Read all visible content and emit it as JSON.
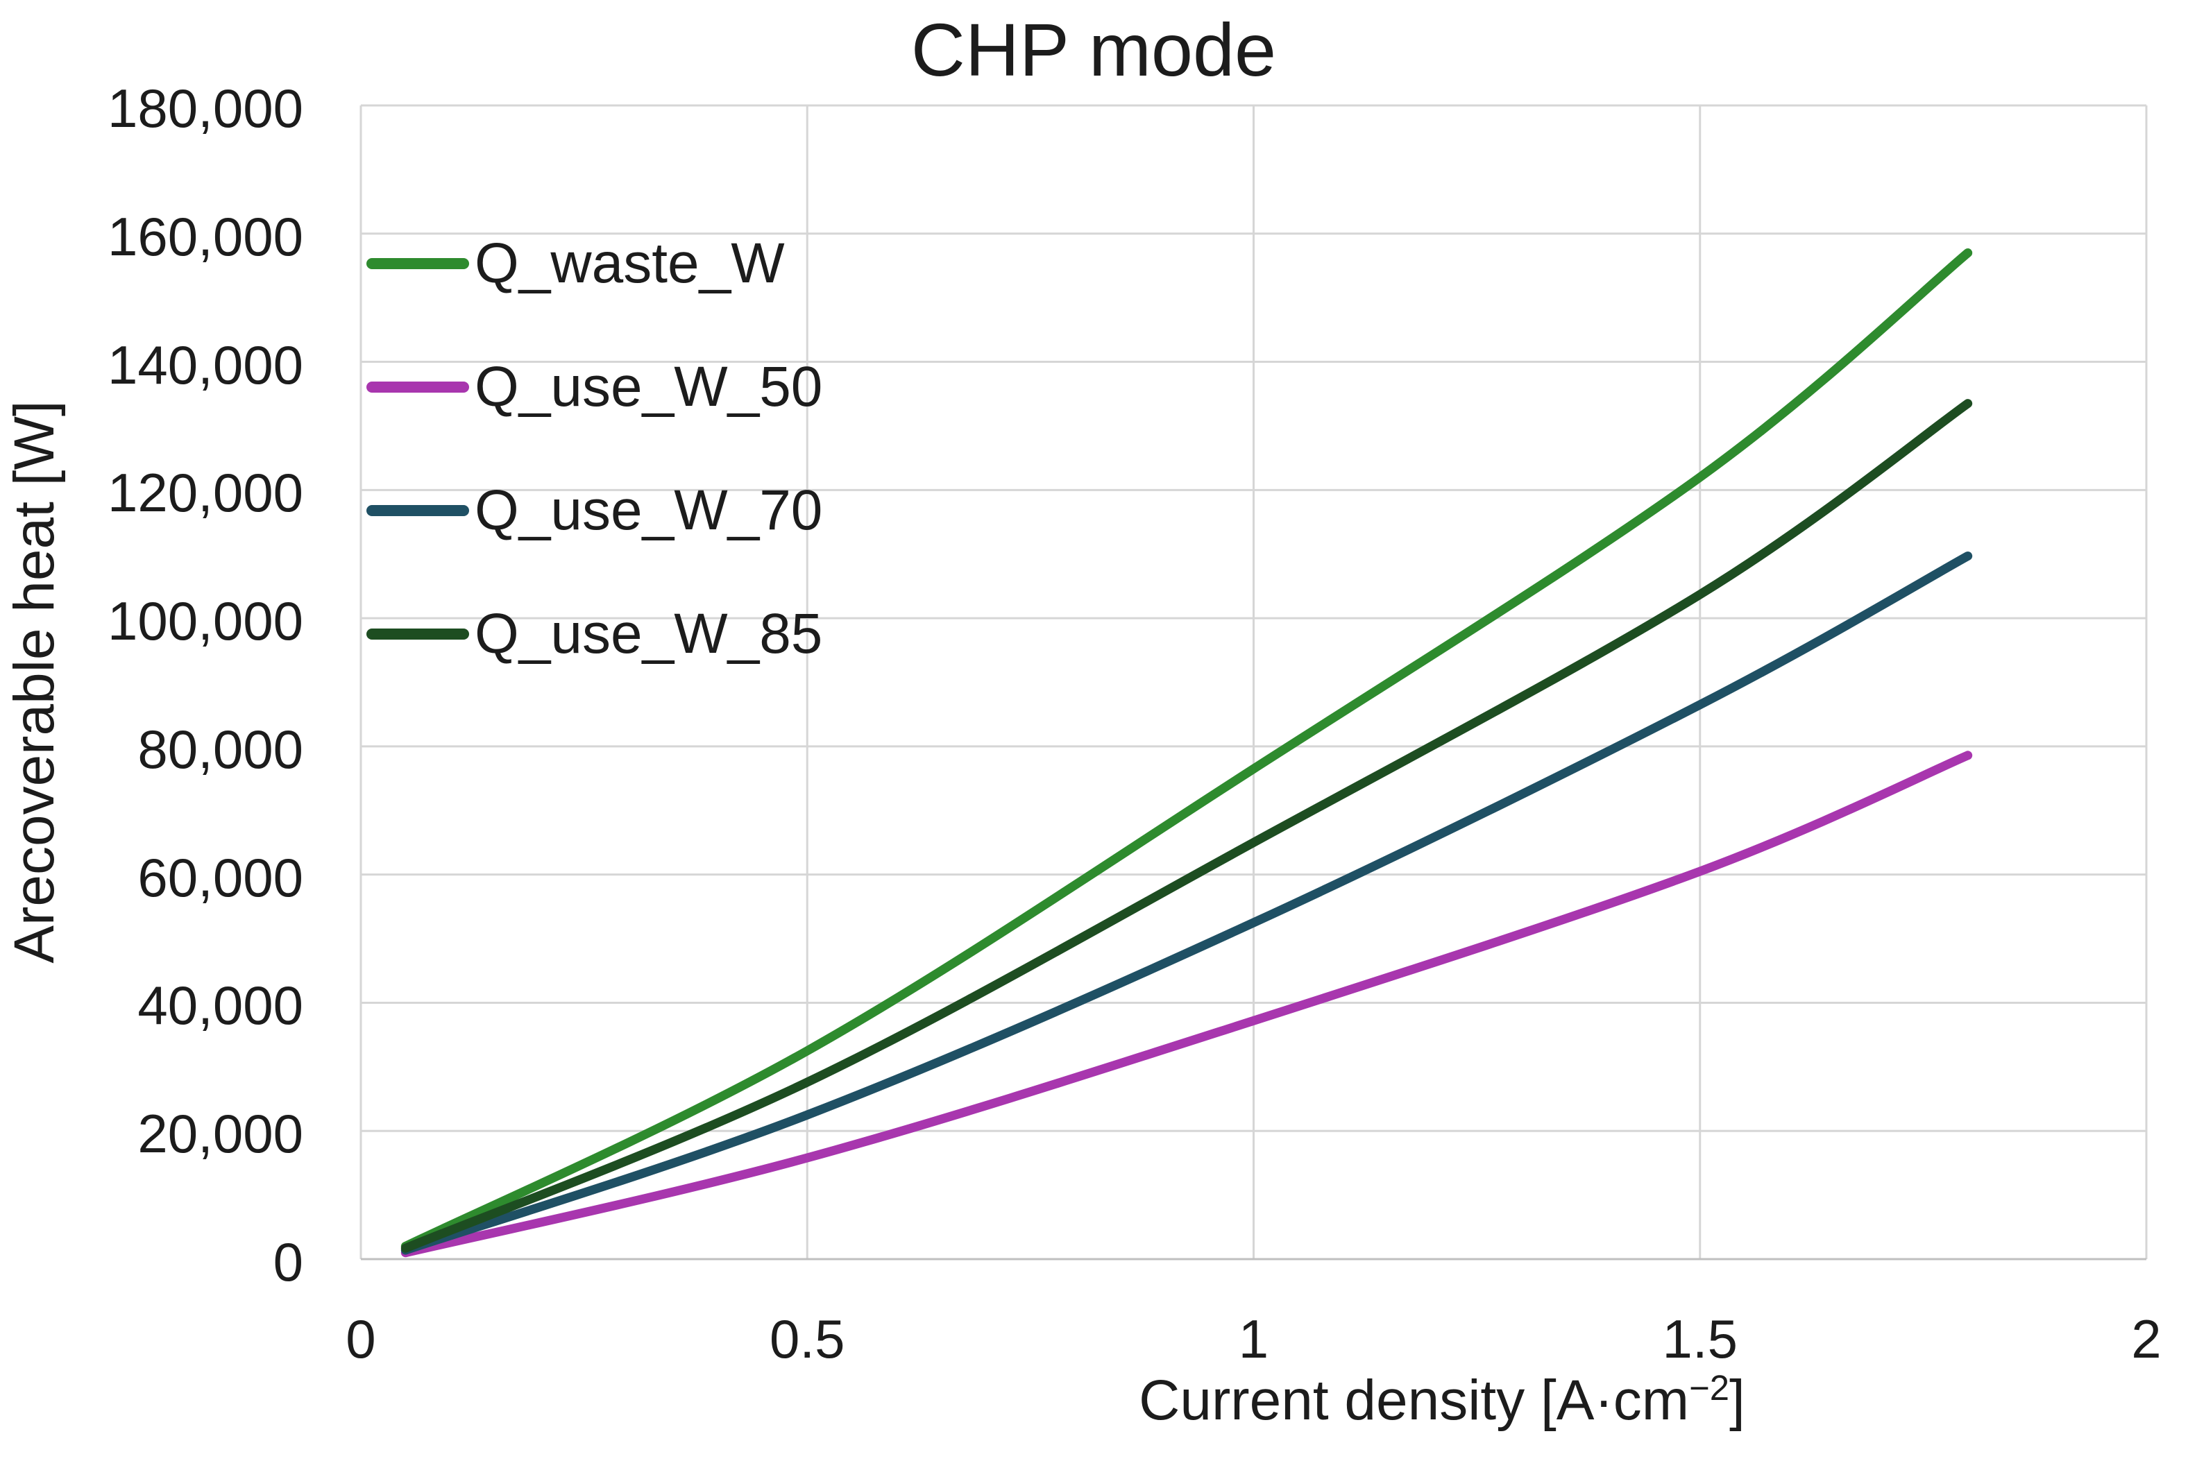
{
  "chart_data": {
    "type": "line",
    "title": "CHP mode",
    "xlabel": "Current density [A·cm⁻²]",
    "xlabel_parts": {
      "prefix": "Current density [A·cm",
      "sup": "−2",
      "suffix": "]"
    },
    "ylabel": "Arecoverable heat [W]",
    "xlim": [
      0,
      2
    ],
    "ylim": [
      0,
      180000
    ],
    "grid": true,
    "legend_position": "upper-left-inside",
    "x_ticks": [
      0,
      0.5,
      1,
      1.5,
      2
    ],
    "x_tick_labels": [
      "0",
      "0.5",
      "1",
      "1.5",
      "2"
    ],
    "y_ticks": [
      0,
      20000,
      40000,
      60000,
      80000,
      100000,
      120000,
      140000,
      160000,
      180000
    ],
    "y_tick_labels": [
      "0",
      "20,000",
      "40,000",
      "60,000",
      "80,000",
      "100,000",
      "120,000",
      "140,000",
      "160,000",
      "180,000"
    ],
    "x": [
      0.05,
      0.5,
      1.0,
      1.5,
      1.8
    ],
    "series": [
      {
        "name": "Q_waste_W",
        "color": "#2e8b2e",
        "values": [
          2000,
          32500,
          76500,
          122000,
          157000
        ]
      },
      {
        "name": "Q_use_W_50",
        "color": "#a836ae",
        "values": [
          1000,
          15800,
          37200,
          60500,
          78600
        ]
      },
      {
        "name": "Q_use_W_70",
        "color": "#1f5064",
        "values": [
          1400,
          22500,
          52500,
          86500,
          109700
        ]
      },
      {
        "name": "Q_use_W_85",
        "color": "#1d4d21",
        "values": [
          1700,
          27600,
          65000,
          103700,
          133500
        ]
      }
    ],
    "colors": {
      "gridline": "#d6d6d6",
      "axis_line": "#bfbfbf",
      "text": "#1c1c1c"
    }
  }
}
